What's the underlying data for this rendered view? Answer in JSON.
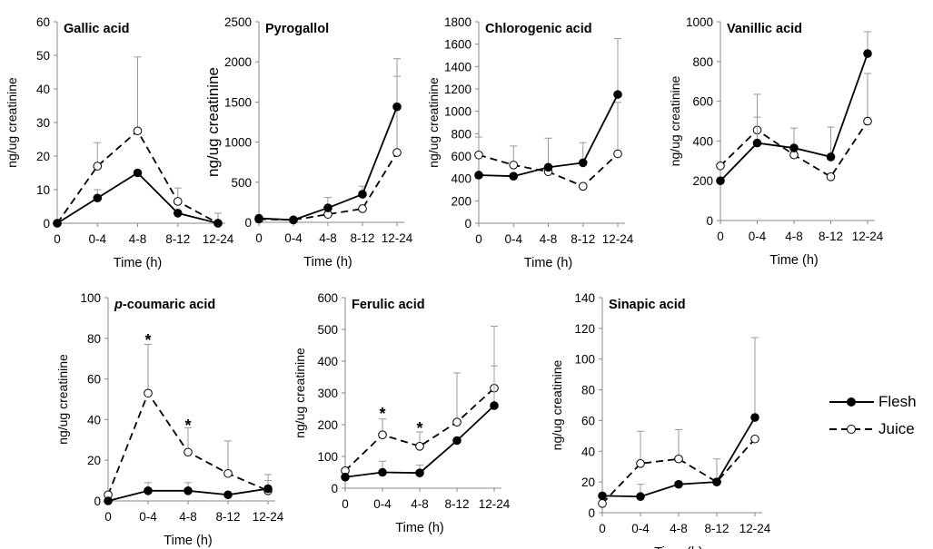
{
  "legend": {
    "flesh_label": "Flesh",
    "juice_label": "Juice",
    "flesh_color": "#000000",
    "juice_fill": "#ffffff",
    "juice_dash": "dashed"
  },
  "chart_data": [
    {
      "type": "line",
      "title": "Gallic acid",
      "xlabel": "Time (h)",
      "ylabel": "ng/ug creatinine",
      "categories": [
        "0",
        "0-4",
        "4-8",
        "8-12",
        "12-24"
      ],
      "ylim": [
        0,
        60
      ],
      "yticks": [
        0,
        10,
        20,
        30,
        40,
        50,
        60
      ],
      "series": [
        {
          "name": "Flesh",
          "values": [
            0,
            7.5,
            15,
            3,
            0
          ],
          "error": [
            0,
            2.5,
            0,
            0,
            0
          ]
        },
        {
          "name": "Juice",
          "values": [
            0,
            17,
            27.5,
            6.5,
            0
          ],
          "error": [
            0,
            7,
            22,
            4,
            3
          ]
        }
      ],
      "annotations": []
    },
    {
      "type": "line",
      "title": "Pyrogallol",
      "xlabel": "Time (h)",
      "ylabel": "ng/ug creatinine",
      "categories": [
        "0",
        "0-4",
        "4-8",
        "8-12",
        "12-24"
      ],
      "ylim": [
        0,
        2500
      ],
      "yticks": [
        0,
        500,
        1000,
        1500,
        2000,
        2500
      ],
      "series": [
        {
          "name": "Flesh",
          "values": [
            50,
            30,
            180,
            350,
            1440
          ],
          "error": [
            0,
            0,
            130,
            100,
            600
          ]
        },
        {
          "name": "Juice",
          "values": [
            40,
            30,
            100,
            170,
            870
          ],
          "error": [
            0,
            0,
            0,
            0,
            950
          ]
        }
      ],
      "annotations": []
    },
    {
      "type": "line",
      "title": "Chlorogenic acid",
      "xlabel": "Time (h)",
      "ylabel": "ng/ug creatinine",
      "categories": [
        "0",
        "0-4",
        "4-8",
        "8-12",
        "12-24"
      ],
      "ylim": [
        0,
        1800
      ],
      "yticks": [
        0,
        200,
        400,
        600,
        800,
        1000,
        1200,
        1400,
        1600,
        1800
      ],
      "series": [
        {
          "name": "Flesh",
          "values": [
            430,
            420,
            500,
            540,
            1150
          ],
          "error": [
            0,
            0,
            260,
            180,
            500
          ]
        },
        {
          "name": "Juice",
          "values": [
            610,
            520,
            460,
            330,
            620
          ],
          "error": [
            160,
            170,
            0,
            0,
            460
          ]
        }
      ],
      "annotations": []
    },
    {
      "type": "line",
      "title": "Vanillic acid",
      "xlabel": "Time (h)",
      "ylabel": "ng/ug creatinine",
      "categories": [
        "0",
        "0-4",
        "4-8",
        "8-12",
        "12-24"
      ],
      "ylim": [
        0,
        1000
      ],
      "yticks": [
        0,
        200,
        400,
        600,
        800,
        1000
      ],
      "series": [
        {
          "name": "Flesh",
          "values": [
            200,
            390,
            365,
            320,
            840
          ],
          "error": [
            0,
            130,
            100,
            150,
            110
          ]
        },
        {
          "name": "Juice",
          "values": [
            275,
            455,
            330,
            220,
            500
          ],
          "error": [
            0,
            180,
            0,
            0,
            240
          ]
        }
      ],
      "annotations": []
    },
    {
      "type": "line",
      "title": "p-coumaric acid",
      "xlabel": "Time (h)",
      "ylabel": "ng/ug creatinine",
      "categories": [
        "0",
        "0-4",
        "4-8",
        "8-12",
        "12-24"
      ],
      "ylim": [
        0,
        100
      ],
      "yticks": [
        0,
        20,
        40,
        60,
        80,
        100
      ],
      "series": [
        {
          "name": "Flesh",
          "values": [
            0,
            5,
            5,
            3,
            6
          ],
          "error": [
            0,
            4,
            4,
            0,
            4
          ]
        },
        {
          "name": "Juice",
          "values": [
            3,
            53,
            24,
            13.5,
            5
          ],
          "error": [
            0,
            24,
            12,
            16,
            8
          ]
        }
      ],
      "annotations": [
        {
          "text": "*",
          "category": "0-4",
          "y": 80
        },
        {
          "text": "*",
          "category": "4-8",
          "y": 38
        }
      ]
    },
    {
      "type": "line",
      "title": "Ferulic acid",
      "xlabel": "Time (h)",
      "ylabel": "ng/ug creatinine",
      "categories": [
        "0",
        "0-4",
        "4-8",
        "8-12",
        "12-24"
      ],
      "ylim": [
        0,
        600
      ],
      "yticks": [
        0,
        100,
        200,
        300,
        400,
        500,
        600
      ],
      "series": [
        {
          "name": "Flesh",
          "values": [
            35,
            50,
            48,
            150,
            260
          ],
          "error": [
            0,
            35,
            25,
            0,
            125
          ]
        },
        {
          "name": "Juice",
          "values": [
            55,
            168,
            132,
            208,
            315
          ],
          "error": [
            0,
            50,
            45,
            155,
            195
          ]
        }
      ],
      "annotations": [
        {
          "text": "*",
          "category": "0-4",
          "y": 240
        },
        {
          "text": "*",
          "category": "4-8",
          "y": 195
        }
      ]
    },
    {
      "type": "line",
      "title": "Sinapic acid",
      "xlabel": "Time (h)",
      "ylabel": "ng/ug creatinine",
      "categories": [
        "0",
        "0-4",
        "4-8",
        "8-12",
        "12-24"
      ],
      "ylim": [
        0,
        140
      ],
      "yticks": [
        0,
        20,
        40,
        60,
        80,
        100,
        120,
        140
      ],
      "series": [
        {
          "name": "Flesh",
          "values": [
            11,
            10.5,
            18.5,
            20,
            62
          ],
          "error": [
            0,
            8,
            0,
            15,
            52
          ]
        },
        {
          "name": "Juice",
          "values": [
            6,
            32,
            35,
            20,
            48
          ],
          "error": [
            0,
            21,
            19,
            0,
            0
          ]
        }
      ],
      "annotations": []
    }
  ]
}
